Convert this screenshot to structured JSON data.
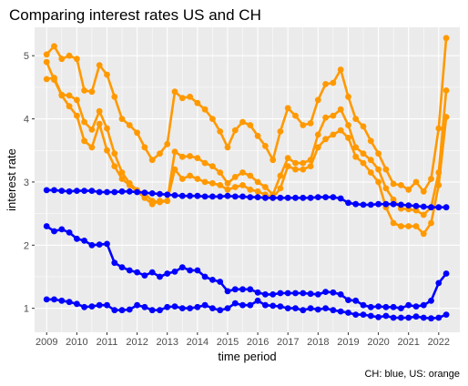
{
  "chart_data": {
    "type": "line",
    "title": "Comparing interest rates US and CH",
    "xlabel": "time period",
    "ylabel": "interest rate",
    "caption": "CH: blue, US: orange",
    "x_ticks": [
      "2009",
      "2010",
      "2011",
      "2012",
      "2013",
      "2014",
      "2015",
      "2016",
      "2017",
      "2018",
      "2019",
      "2020",
      "2021",
      "2022"
    ],
    "y_ticks": [
      "1",
      "2",
      "3",
      "4",
      "5"
    ],
    "xlim": [
      2008.6,
      2022.7
    ],
    "ylim": [
      0.62,
      5.45
    ],
    "grid": true,
    "legend": "none",
    "colors": {
      "CH": "#0000ff",
      "US": "#ff9900",
      "panel": "#ebebeb",
      "grid": "#ffffff"
    },
    "series": [
      {
        "group": "US",
        "x": [
          2009.0,
          2009.25,
          2009.5,
          2009.75,
          2010.0,
          2010.25,
          2010.5,
          2010.75,
          2011.0,
          2011.25,
          2011.5,
          2011.75,
          2012.0,
          2012.25,
          2012.5,
          2012.75,
          2013.0,
          2013.25,
          2013.5,
          2013.75,
          2014.0,
          2014.25,
          2014.5,
          2014.75,
          2015.0,
          2015.25,
          2015.5,
          2015.75,
          2016.0,
          2016.25,
          2016.5,
          2016.75,
          2017.0,
          2017.25,
          2017.5,
          2017.75,
          2018.0,
          2018.25,
          2018.5,
          2018.75,
          2019.0,
          2019.25,
          2019.5,
          2019.75,
          2020.0,
          2020.25,
          2020.5,
          2020.75,
          2021.0,
          2021.25,
          2021.5,
          2021.75,
          2022.0,
          2022.25
        ],
        "y": [
          5.02,
          5.15,
          4.95,
          5.0,
          4.95,
          4.45,
          4.43,
          4.85,
          4.7,
          4.35,
          4.0,
          3.9,
          3.78,
          3.55,
          3.35,
          3.45,
          3.6,
          4.43,
          4.33,
          4.35,
          4.25,
          4.15,
          4.0,
          3.8,
          3.55,
          3.82,
          3.95,
          3.9,
          3.73,
          3.57,
          3.35,
          3.8,
          4.17,
          4.05,
          3.9,
          3.93,
          4.3,
          4.55,
          4.57,
          4.78,
          4.35,
          4.0,
          3.88,
          3.65,
          3.45,
          3.2,
          2.97,
          2.95,
          2.88,
          3.0,
          2.85,
          3.05,
          3.85,
          5.28
        ]
      },
      {
        "group": "US",
        "x": [
          2009.0,
          2009.25,
          2009.5,
          2009.75,
          2010.0,
          2010.25,
          2010.5,
          2010.75,
          2011.0,
          2011.25,
          2011.5,
          2011.75,
          2012.0,
          2012.25,
          2012.5,
          2012.75,
          2013.0,
          2013.25,
          2013.5,
          2013.75,
          2014.0,
          2014.25,
          2014.5,
          2014.75,
          2015.0,
          2015.25,
          2015.5,
          2015.75,
          2016.0,
          2016.25,
          2016.5,
          2016.75,
          2017.0,
          2017.25,
          2017.5,
          2017.75,
          2018.0,
          2018.25,
          2018.5,
          2018.75,
          2019.0,
          2019.25,
          2019.5,
          2019.75,
          2020.0,
          2020.25,
          2020.5,
          2020.75,
          2021.0,
          2021.25,
          2021.5,
          2021.75,
          2022.0,
          2022.25
        ],
        "y": [
          4.63,
          4.65,
          4.38,
          4.37,
          4.3,
          3.95,
          3.83,
          4.12,
          3.85,
          3.45,
          3.15,
          2.98,
          2.87,
          2.82,
          2.7,
          2.68,
          2.7,
          3.48,
          3.4,
          3.41,
          3.38,
          3.3,
          3.25,
          3.15,
          2.98,
          3.08,
          3.15,
          3.1,
          3.0,
          2.92,
          2.8,
          3.1,
          3.38,
          3.3,
          3.3,
          3.35,
          3.75,
          4.02,
          4.05,
          4.15,
          3.9,
          3.55,
          3.45,
          3.35,
          3.2,
          2.9,
          2.72,
          2.58,
          2.57,
          2.55,
          2.48,
          2.6,
          3.15,
          4.45
        ]
      },
      {
        "group": "US",
        "x": [
          2009.0,
          2009.25,
          2009.5,
          2009.75,
          2010.0,
          2010.25,
          2010.5,
          2010.75,
          2011.0,
          2011.25,
          2011.5,
          2011.75,
          2012.0,
          2012.25,
          2012.5,
          2012.75,
          2013.0,
          2013.25,
          2013.5,
          2013.75,
          2014.0,
          2014.25,
          2014.5,
          2014.75,
          2015.0,
          2015.25,
          2015.5,
          2015.75,
          2016.0,
          2016.25,
          2016.5,
          2016.75,
          2017.0,
          2017.25,
          2017.5,
          2017.75,
          2018.0,
          2018.25,
          2018.5,
          2018.75,
          2019.0,
          2019.25,
          2019.5,
          2019.75,
          2020.0,
          2020.25,
          2020.5,
          2020.75,
          2021.0,
          2021.25,
          2021.5,
          2021.75,
          2022.0,
          2022.25
        ],
        "y": [
          4.9,
          4.62,
          4.37,
          4.2,
          4.05,
          3.65,
          3.55,
          3.92,
          3.5,
          3.25,
          3.05,
          2.95,
          2.85,
          2.75,
          2.65,
          2.7,
          2.7,
          3.2,
          3.05,
          3.1,
          3.05,
          3.0,
          2.98,
          2.95,
          2.88,
          2.92,
          2.95,
          2.88,
          2.85,
          2.8,
          2.75,
          2.9,
          3.25,
          3.2,
          3.2,
          3.25,
          3.55,
          3.68,
          3.75,
          3.82,
          3.7,
          3.4,
          3.3,
          3.15,
          3.0,
          2.6,
          2.35,
          2.3,
          2.3,
          2.3,
          2.18,
          2.35,
          2.95,
          4.03
        ]
      },
      {
        "group": "CH",
        "x": [
          2009.0,
          2009.25,
          2009.5,
          2009.75,
          2010.0,
          2010.25,
          2010.5,
          2010.75,
          2011.0,
          2011.25,
          2011.5,
          2011.75,
          2012.0,
          2012.25,
          2012.5,
          2012.75,
          2013.0,
          2013.25,
          2013.5,
          2013.75,
          2014.0,
          2014.25,
          2014.5,
          2014.75,
          2015.0,
          2015.25,
          2015.5,
          2015.75,
          2016.0,
          2016.25,
          2016.5,
          2016.75,
          2017.0,
          2017.25,
          2017.5,
          2017.75,
          2018.0,
          2018.25,
          2018.5,
          2018.75,
          2019.0,
          2019.25,
          2019.5,
          2019.75,
          2020.0,
          2020.25,
          2020.5,
          2020.75,
          2021.0,
          2021.25,
          2021.5,
          2021.75,
          2022.0,
          2022.25
        ],
        "y": [
          2.87,
          2.87,
          2.86,
          2.85,
          2.86,
          2.86,
          2.86,
          2.84,
          2.84,
          2.84,
          2.85,
          2.85,
          2.84,
          2.83,
          2.82,
          2.81,
          2.8,
          2.79,
          2.78,
          2.78,
          2.78,
          2.77,
          2.77,
          2.77,
          2.78,
          2.77,
          2.77,
          2.76,
          2.76,
          2.75,
          2.75,
          2.75,
          2.75,
          2.75,
          2.75,
          2.75,
          2.76,
          2.76,
          2.76,
          2.74,
          2.67,
          2.65,
          2.64,
          2.64,
          2.65,
          2.65,
          2.65,
          2.64,
          2.63,
          2.62,
          2.61,
          2.6,
          2.6,
          2.6
        ]
      },
      {
        "group": "CH",
        "x": [
          2009.0,
          2009.25,
          2009.5,
          2009.75,
          2010.0,
          2010.25,
          2010.5,
          2010.75,
          2011.0,
          2011.25,
          2011.5,
          2011.75,
          2012.0,
          2012.25,
          2012.5,
          2012.75,
          2013.0,
          2013.25,
          2013.5,
          2013.75,
          2014.0,
          2014.25,
          2014.5,
          2014.75,
          2015.0,
          2015.25,
          2015.5,
          2015.75,
          2016.0,
          2016.25,
          2016.5,
          2016.75,
          2017.0,
          2017.25,
          2017.5,
          2017.75,
          2018.0,
          2018.25,
          2018.5,
          2018.75,
          2019.0,
          2019.25,
          2019.5,
          2019.75,
          2020.0,
          2020.25,
          2020.5,
          2020.75,
          2021.0,
          2021.25,
          2021.5,
          2021.75,
          2022.0,
          2022.25
        ],
        "y": [
          2.3,
          2.22,
          2.25,
          2.2,
          2.1,
          2.07,
          2.0,
          2.01,
          2.02,
          1.72,
          1.65,
          1.6,
          1.57,
          1.52,
          1.57,
          1.5,
          1.55,
          1.58,
          1.65,
          1.6,
          1.6,
          1.5,
          1.45,
          1.42,
          1.27,
          1.3,
          1.3,
          1.3,
          1.25,
          1.22,
          1.22,
          1.24,
          1.24,
          1.24,
          1.24,
          1.23,
          1.22,
          1.26,
          1.25,
          1.22,
          1.13,
          1.12,
          1.05,
          1.02,
          1.03,
          1.02,
          1.02,
          1.0,
          1.05,
          1.03,
          1.05,
          1.12,
          1.4,
          1.55
        ]
      },
      {
        "group": "CH",
        "x": [
          2009.0,
          2009.25,
          2009.5,
          2009.75,
          2010.0,
          2010.25,
          2010.5,
          2010.75,
          2011.0,
          2011.25,
          2011.5,
          2011.75,
          2012.0,
          2012.25,
          2012.5,
          2012.75,
          2013.0,
          2013.25,
          2013.5,
          2013.75,
          2014.0,
          2014.25,
          2014.5,
          2014.75,
          2015.0,
          2015.25,
          2015.5,
          2015.75,
          2016.0,
          2016.25,
          2016.5,
          2016.75,
          2017.0,
          2017.25,
          2017.5,
          2017.75,
          2018.0,
          2018.25,
          2018.5,
          2018.75,
          2019.0,
          2019.25,
          2019.5,
          2019.75,
          2020.0,
          2020.25,
          2020.5,
          2020.75,
          2021.0,
          2021.25,
          2021.5,
          2021.75,
          2022.0,
          2022.25
        ],
        "y": [
          1.14,
          1.14,
          1.12,
          1.1,
          1.07,
          1.02,
          1.03,
          1.05,
          1.05,
          0.97,
          0.97,
          0.98,
          1.05,
          1.02,
          0.97,
          0.97,
          1.02,
          1.03,
          1.0,
          1.0,
          1.02,
          1.05,
          1.0,
          0.97,
          1.0,
          1.08,
          1.05,
          1.05,
          1.12,
          1.05,
          1.04,
          1.03,
          1.0,
          1.0,
          0.97,
          1.0,
          0.98,
          1.0,
          0.97,
          0.95,
          0.93,
          0.9,
          0.9,
          0.88,
          0.86,
          0.88,
          0.85,
          0.85,
          0.85,
          0.87,
          0.85,
          0.84,
          0.85,
          0.9
        ]
      }
    ]
  }
}
